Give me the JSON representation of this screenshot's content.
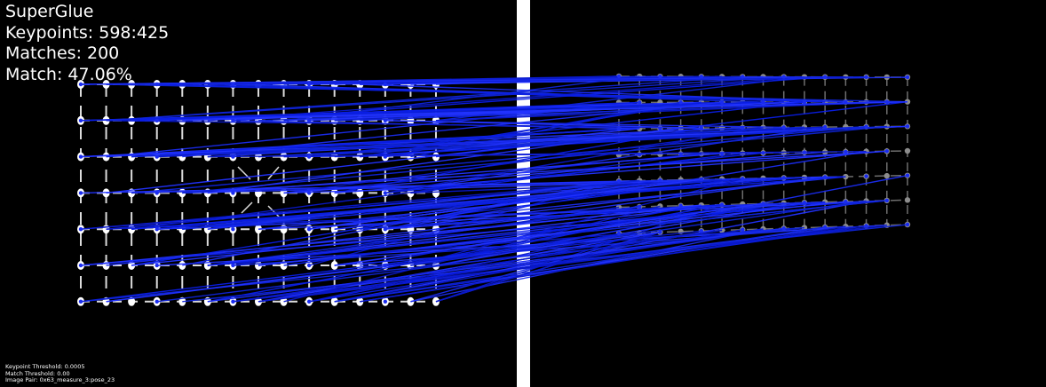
{
  "header": {
    "title": "SuperGlue",
    "keypoints": "Keypoints: 598:425",
    "matches": "Matches: 200",
    "match_rate": "Match: 47.06%"
  },
  "footer": {
    "keypoint_threshold": "Keypoint Threshold: 0.0005",
    "match_threshold": "Match Threshold: 0.00",
    "image_pair": "Image Pair: 0x63_measure_3:pose_23"
  },
  "colors": {
    "background": "#000000",
    "divider": "#ffffff",
    "match_line": "#0a1ee6",
    "keypoint_left": "#ffffff",
    "keypoint_right": "#8c8c8c",
    "grid_left": "#dcdcdc",
    "grid_right": "#6e6e6e"
  }
}
